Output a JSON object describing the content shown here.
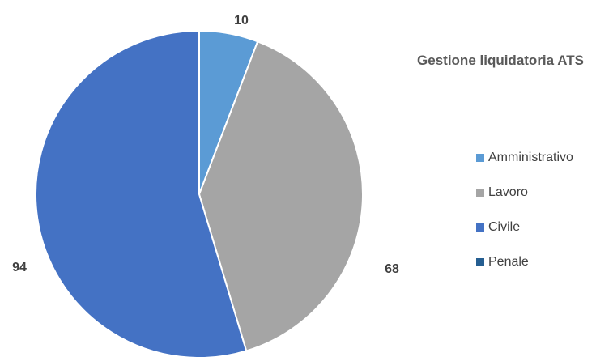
{
  "chart_data": {
    "type": "pie",
    "title": "Gestione liquidatoria ATS",
    "categories": [
      "Amministrativo",
      "Lavoro",
      "Civile",
      "Penale"
    ],
    "values": [
      10,
      68,
      94,
      0
    ],
    "data_labels": [
      "10",
      "68",
      "94",
      ""
    ],
    "colors": [
      "#5B9BD5",
      "#A5A5A5",
      "#4472C4",
      "#255E91"
    ],
    "legend": "right",
    "start_angle": "12 o'clock",
    "direction": "clockwise"
  }
}
